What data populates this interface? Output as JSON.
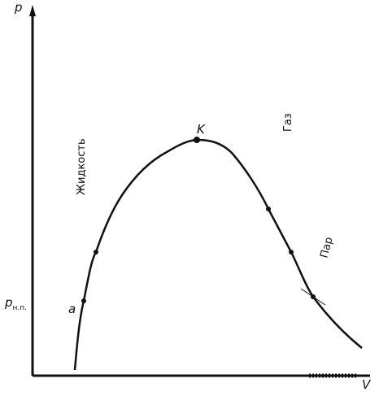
{
  "axes": {
    "y_label": "p",
    "x_label": "V"
  },
  "pressure_level": {
    "symbol": "p",
    "subscript": "н.п."
  },
  "points": {
    "critical": "K",
    "start": "a"
  },
  "regions": {
    "gas": "Газ",
    "liquid": "Жидкость",
    "vapor": "Пар"
  }
}
